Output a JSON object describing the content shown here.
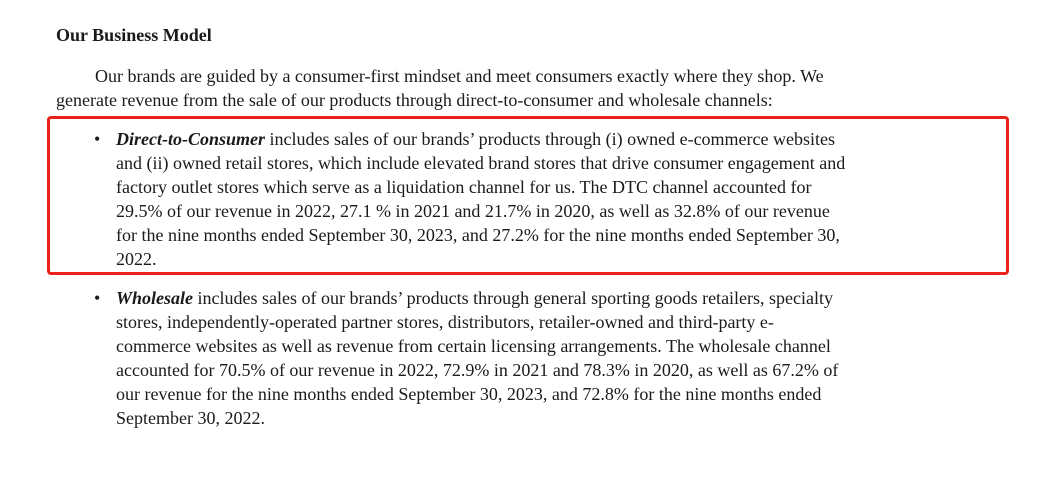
{
  "section": {
    "title": "Our Business Model",
    "intro_line1": "Our brands are guided by a consumer-first mindset and meet consumers exactly where they shop. We",
    "intro_line2": "generate revenue from the sale of our products through direct-to-consumer and wholesale channels:"
  },
  "bullets": {
    "marker": "•",
    "dtc": {
      "term": "Direct-to-Consumer",
      "line1": " includes sales of our brands’ products through (i) owned e-commerce websites",
      "line2": "and (ii) owned retail stores, which include elevated brand stores that drive consumer engagement and",
      "line3": "factory outlet stores which serve as a liquidation channel for us. The DTC channel accounted for",
      "line4": "29.5% of our revenue in 2022, 27.1 % in 2021 and 21.7% in 2020, as well as 32.8% of our revenue",
      "line5": "for the nine months ended September 30, 2023, and 27.2% for the nine months ended September 30,",
      "line6": "2022."
    },
    "wholesale": {
      "term": "Wholesale",
      "line1": " includes sales of our brands’ products through general sporting goods retailers, specialty",
      "line2": "stores, independently-operated partner stores, distributors, retailer-owned and third-party e-",
      "line3": "commerce websites as well as revenue from certain licensing arrangements. The wholesale channel",
      "line4": "accounted for 70.5% of our revenue in 2022, 72.9% in 2021 and 78.3% in 2020, as well as 67.2% of",
      "line5": "our revenue for the nine months ended September 30, 2023, and 72.8% for the nine months ended",
      "line6": "September 30, 2022."
    }
  },
  "highlight": {
    "color": "#e8231c",
    "target": "dtc"
  }
}
